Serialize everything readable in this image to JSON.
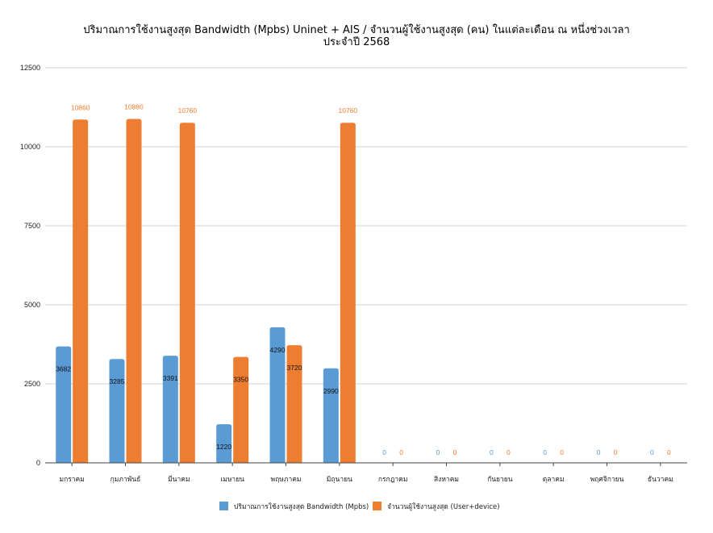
{
  "chart_data": {
    "type": "bar",
    "title": "ปริมาณการใช้งานสูงสุด Bandwidth (Mpbs) Uninet + AIS / จำนวนผู้ใช้งานสูงสุด (คน) ในแต่ละเดือน ณ หนึ่งช่วงเวลา",
    "title_line2": "ประจำปี 2568",
    "categories": [
      "มกราคม",
      "กุมภาพันธ์",
      "มีนาคม",
      "เมษายน",
      "พฤษภาคม",
      "มิถุนายน",
      "กรกฎาคม",
      "สิงหาคม",
      "กันยายน",
      "ตุลาคม",
      "พฤศจิกายน",
      "ธันวาคม"
    ],
    "series": [
      {
        "name": "ปริมาณการใช้งานสูงสุด Bandwidth (Mpbs)",
        "color": "#5B9BD5",
        "values": [
          3682,
          3285,
          3391,
          1220,
          4290,
          2990,
          0,
          0,
          0,
          0,
          0,
          0
        ]
      },
      {
        "name": "จำนวนผู้ใช้งานสูงสุด (User+device)",
        "color": "#ED7D31",
        "values": [
          10860,
          10880,
          10760,
          3350,
          3720,
          10760,
          0,
          0,
          0,
          0,
          0,
          0
        ]
      }
    ],
    "ylim": [
      0,
      12500
    ],
    "yticks": [
      0,
      2500,
      5000,
      7500,
      10000,
      12500
    ],
    "grid": true,
    "legend": "bottom"
  }
}
